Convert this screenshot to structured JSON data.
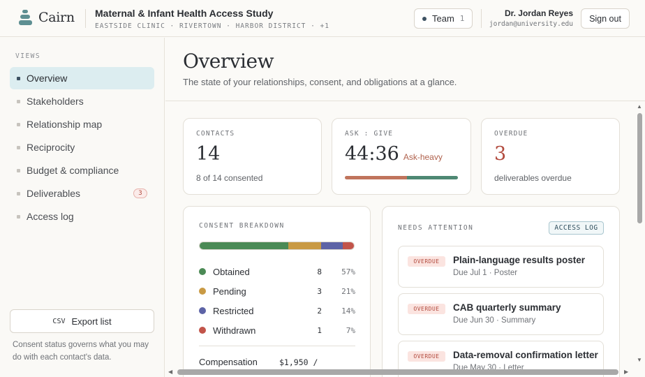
{
  "app": {
    "name": "Cairn",
    "study_title": "Maternal & Infant Health Access Study",
    "study_sites": "EASTSIDE CLINIC · RIVERTOWN · HARBOR DISTRICT · +1"
  },
  "header": {
    "team_label": "Team",
    "team_count": "1",
    "user_name": "Dr. Jordan Reyes",
    "user_email": "jordan@university.edu",
    "signout_label": "Sign out"
  },
  "sidebar": {
    "views_label": "VIEWS",
    "items": [
      {
        "label": "Overview",
        "active": true
      },
      {
        "label": "Stakeholders"
      },
      {
        "label": "Relationship map"
      },
      {
        "label": "Reciprocity"
      },
      {
        "label": "Budget & compliance"
      },
      {
        "label": "Deliverables",
        "badge": "3"
      },
      {
        "label": "Access log"
      }
    ],
    "export_tag": "CSV",
    "export_label": "Export list",
    "note": "Consent status governs what you may do with each contact's data."
  },
  "page": {
    "title": "Overview",
    "subtitle": "The state of your relationships, consent, and obligations at a glance."
  },
  "stats": {
    "contacts": {
      "label": "CONTACTS",
      "value": "14",
      "sub": "8 of 14 consented"
    },
    "ask_give": {
      "label": "ASK : GIVE",
      "value": "44:36",
      "tag": "Ask-heavy",
      "ask": 44,
      "give": 36,
      "ask_color": "#c0745c",
      "give_color": "#4e8873"
    },
    "overdue": {
      "label": "OVERDUE",
      "value": "3",
      "sub": "deliverables overdue",
      "value_color": "#b24a3d"
    }
  },
  "consent": {
    "label": "CONSENT BREAKDOWN",
    "items": [
      {
        "name": "Obtained",
        "count": "8",
        "pct": "57%",
        "value": 57,
        "color": "#4b8a55"
      },
      {
        "name": "Pending",
        "count": "3",
        "pct": "21%",
        "value": 21,
        "color": "#c99a44"
      },
      {
        "name": "Restricted",
        "count": "2",
        "pct": "14%",
        "value": 14,
        "color": "#5d63a6"
      },
      {
        "name": "Withdrawn",
        "count": "1",
        "pct": "7%",
        "value": 7,
        "color": "#c2544a"
      }
    ],
    "compensation_label": "Compensation",
    "compensation_value": "$1,950 /"
  },
  "attention": {
    "label": "NEEDS ATTENTION",
    "access_log_label": "ACCESS LOG",
    "items": [
      {
        "badge": "OVERDUE",
        "title": "Plain-language results poster",
        "meta": "Due Jul 1 · Poster"
      },
      {
        "badge": "OVERDUE",
        "title": "CAB quarterly summary",
        "meta": "Due Jun 30 · Summary"
      },
      {
        "badge": "OVERDUE",
        "title": "Data-removal confirmation letter",
        "meta": "Due May 30 · Letter"
      }
    ]
  }
}
